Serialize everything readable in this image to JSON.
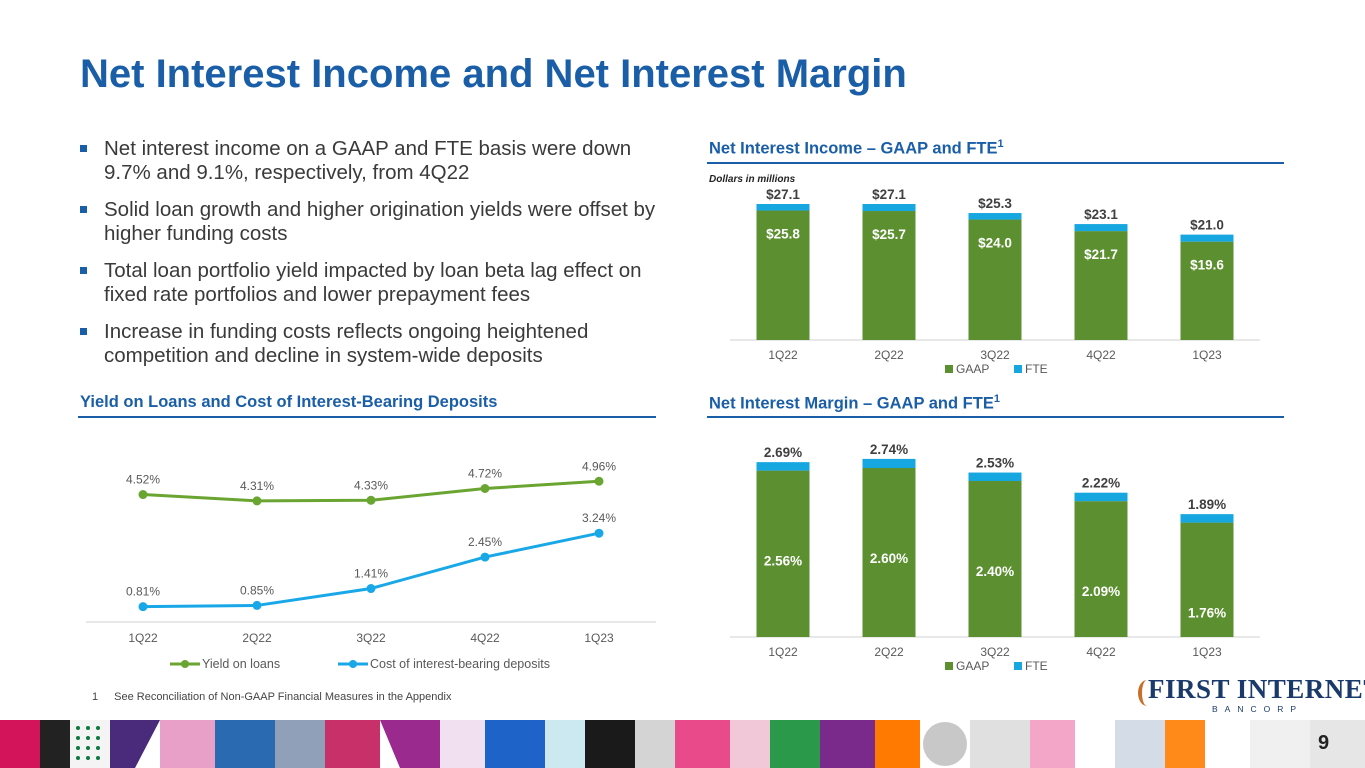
{
  "page": {
    "title": "Net Interest Income and Net Interest Margin",
    "page_number": "9",
    "footnote_num": "1",
    "footnote_text": "See Reconciliation of Non-GAAP Financial Measures in the Appendix"
  },
  "bullets": [
    "Net interest income on a GAAP and FTE basis were down 9.7% and 9.1%, respectively, from 4Q22",
    "Solid loan growth and higher origination yields were offset by higher funding costs",
    "Total loan portfolio yield impacted by loan beta lag effect on fixed rate portfolios and lower prepayment fees",
    "Increase in funding costs reflects ongoing heightened competition and decline in system-wide deposits"
  ],
  "sections": {
    "nii_title": "Net Interest Income – GAAP and FTE",
    "nim_title": "Net Interest Margin – GAAP and FTE",
    "yield_title": "Yield on Loans and Cost of Interest-Bearing Deposits",
    "superscript": "1",
    "nii_note": "Dollars in millions"
  },
  "logo": {
    "name": "FIRST INTERNET",
    "sub": "BANCORP"
  },
  "colors": {
    "accent": "#1a5ea8",
    "gaap": "#5b8f2f",
    "fte": "#16a6e0",
    "yield": "#6aa532",
    "cost": "#18a8e8"
  },
  "chart_data": [
    {
      "id": "nii",
      "type": "bar",
      "stacked": true,
      "title": "Net Interest Income – GAAP and FTE",
      "subtitle": "Dollars in millions",
      "categories": [
        "1Q22",
        "2Q22",
        "3Q22",
        "4Q22",
        "1Q23"
      ],
      "series": [
        {
          "name": "GAAP",
          "values": [
            25.8,
            25.7,
            24.0,
            21.7,
            19.6
          ],
          "labels": [
            "$25.8",
            "$25.7",
            "$24.0",
            "$21.7",
            "$19.6"
          ]
        },
        {
          "name": "FTE",
          "values": [
            1.3,
            1.4,
            1.3,
            1.4,
            1.4
          ]
        }
      ],
      "totals": [
        27.1,
        27.1,
        25.3,
        23.1,
        21.0
      ],
      "total_labels": [
        "$27.1",
        "$27.1",
        "$25.3",
        "$23.1",
        "$21.0"
      ],
      "ylim": [
        0,
        27.5
      ],
      "legend": "bottom"
    },
    {
      "id": "nim",
      "type": "bar",
      "stacked": true,
      "title": "Net Interest Margin – GAAP and FTE",
      "categories": [
        "1Q22",
        "2Q22",
        "3Q22",
        "4Q22",
        "1Q23"
      ],
      "series": [
        {
          "name": "GAAP",
          "values": [
            2.56,
            2.6,
            2.4,
            2.09,
            1.76
          ],
          "labels": [
            "2.56%",
            "2.60%",
            "2.40%",
            "2.09%",
            "1.76%"
          ]
        },
        {
          "name": "FTE",
          "values": [
            0.13,
            0.14,
            0.13,
            0.13,
            0.13
          ]
        }
      ],
      "totals": [
        2.69,
        2.74,
        2.53,
        2.22,
        1.89
      ],
      "total_labels": [
        "2.69%",
        "2.74%",
        "2.53%",
        "2.22%",
        "1.89%"
      ],
      "ylim": [
        0,
        2.8
      ],
      "legend": "bottom"
    },
    {
      "id": "yield",
      "type": "line",
      "title": "Yield on Loans and Cost of Interest-Bearing Deposits",
      "categories": [
        "1Q22",
        "2Q22",
        "3Q22",
        "4Q22",
        "1Q23"
      ],
      "series": [
        {
          "name": "Yield on loans",
          "values": [
            4.52,
            4.31,
            4.33,
            4.72,
            4.96
          ],
          "labels": [
            "4.52%",
            "4.31%",
            "4.33%",
            "4.72%",
            "4.96%"
          ]
        },
        {
          "name": "Cost of interest-bearing deposits",
          "values": [
            0.81,
            0.85,
            1.41,
            2.45,
            3.24
          ],
          "labels": [
            "0.81%",
            "0.85%",
            "1.41%",
            "2.45%",
            "3.24%"
          ]
        }
      ],
      "ylim": [
        0.5,
        5.2
      ],
      "legend": "bottom"
    }
  ]
}
